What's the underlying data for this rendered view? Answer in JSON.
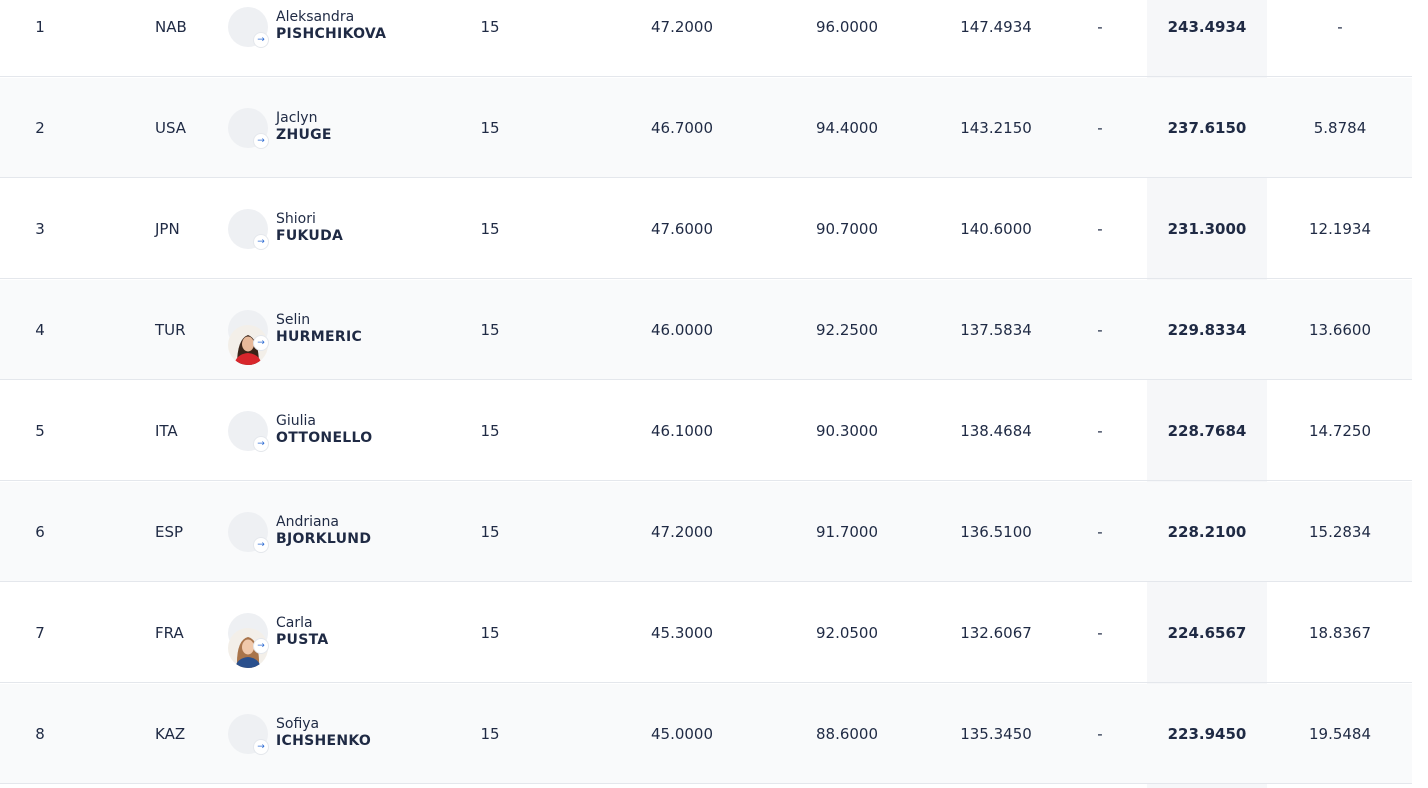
{
  "rows": [
    {
      "rank": "1",
      "noc": "NAB",
      "flag": "nab-flag-icon",
      "given_name": "Aleksandra",
      "family_name": "PISHCHIKOVA",
      "photo": false,
      "di": "15",
      "d": "47.2000",
      "e": "96.0000",
      "total": "147.4934",
      "pen": "-",
      "score": "243.4934",
      "behind": "-"
    },
    {
      "rank": "2",
      "noc": "USA",
      "flag": "usa-flag-icon",
      "given_name": "Jaclyn",
      "family_name": "ZHUGE",
      "photo": false,
      "di": "15",
      "d": "46.7000",
      "e": "94.4000",
      "total": "143.2150",
      "pen": "-",
      "score": "237.6150",
      "behind": "5.8784"
    },
    {
      "rank": "3",
      "noc": "JPN",
      "flag": "jpn-flag-icon",
      "given_name": "Shiori",
      "family_name": "FUKUDA",
      "photo": false,
      "di": "15",
      "d": "47.6000",
      "e": "90.7000",
      "total": "140.6000",
      "pen": "-",
      "score": "231.3000",
      "behind": "12.1934"
    },
    {
      "rank": "4",
      "noc": "TUR",
      "flag": "tur-flag-icon",
      "given_name": "Selin",
      "family_name": "HURMERIC",
      "photo": true,
      "di": "15",
      "d": "46.0000",
      "e": "92.2500",
      "total": "137.5834",
      "pen": "-",
      "score": "229.8334",
      "behind": "13.6600"
    },
    {
      "rank": "5",
      "noc": "ITA",
      "flag": "ita-flag-icon",
      "given_name": "Giulia",
      "family_name": "OTTONELLO",
      "photo": false,
      "di": "15",
      "d": "46.1000",
      "e": "90.3000",
      "total": "138.4684",
      "pen": "-",
      "score": "228.7684",
      "behind": "14.7250"
    },
    {
      "rank": "6",
      "noc": "ESP",
      "flag": "esp-flag-icon",
      "given_name": "Andriana",
      "family_name": "BJORKLUND",
      "photo": false,
      "di": "15",
      "d": "47.2000",
      "e": "91.7000",
      "total": "136.5100",
      "pen": "-",
      "score": "228.2100",
      "behind": "15.2834"
    },
    {
      "rank": "7",
      "noc": "FRA",
      "flag": "fra-flag-icon",
      "given_name": "Carla",
      "family_name": "PUSTA",
      "photo": true,
      "di": "15",
      "d": "45.3000",
      "e": "92.0500",
      "total": "132.6067",
      "pen": "-",
      "score": "224.6567",
      "behind": "18.8367"
    },
    {
      "rank": "8",
      "noc": "KAZ",
      "flag": "kaz-flag-icon",
      "given_name": "Sofiya",
      "family_name": "ICHSHENKO",
      "photo": false,
      "di": "15",
      "d": "45.0000",
      "e": "88.6000",
      "total": "135.3450",
      "pen": "-",
      "score": "223.9450",
      "behind": "19.5484"
    }
  ],
  "colors": {
    "text": "#1f2a44",
    "row_alt_bg": "#f9fafb",
    "score_column_bg": "#f6f7f9",
    "divider": "#e4e7ec",
    "link_badge": "#2d6bd3"
  }
}
